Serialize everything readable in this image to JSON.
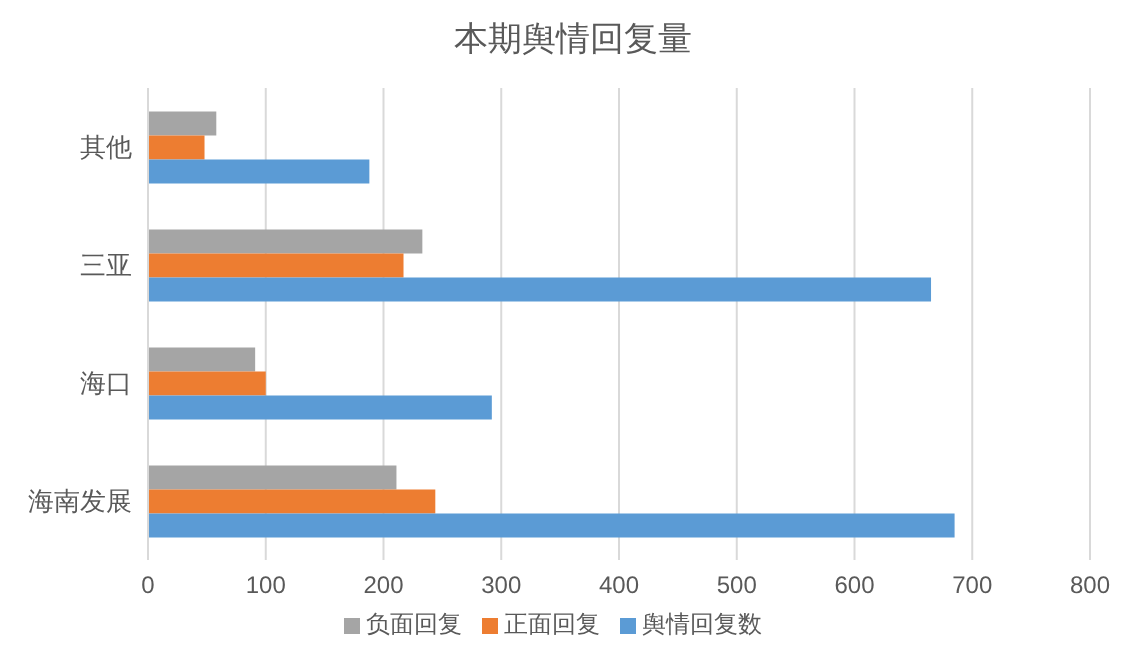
{
  "chart_data": {
    "type": "bar",
    "orientation": "horizontal",
    "title": "本期舆情回复量",
    "categories": [
      "其他",
      "三亚",
      "海口",
      "海南发展"
    ],
    "series": [
      {
        "name": "负面回复",
        "color": "#a5a5a5",
        "values": [
          58,
          233,
          91,
          211
        ]
      },
      {
        "name": "正面回复",
        "color": "#ed7d31",
        "values": [
          48,
          217,
          100,
          244
        ]
      },
      {
        "name": "舆情回复数",
        "color": "#5b9bd5",
        "values": [
          188,
          665,
          292,
          685
        ]
      }
    ],
    "xlim": [
      0,
      800
    ],
    "xticks": [
      0,
      100,
      200,
      300,
      400,
      500,
      600,
      700,
      800
    ],
    "grid": "x",
    "legend": "bottom"
  }
}
